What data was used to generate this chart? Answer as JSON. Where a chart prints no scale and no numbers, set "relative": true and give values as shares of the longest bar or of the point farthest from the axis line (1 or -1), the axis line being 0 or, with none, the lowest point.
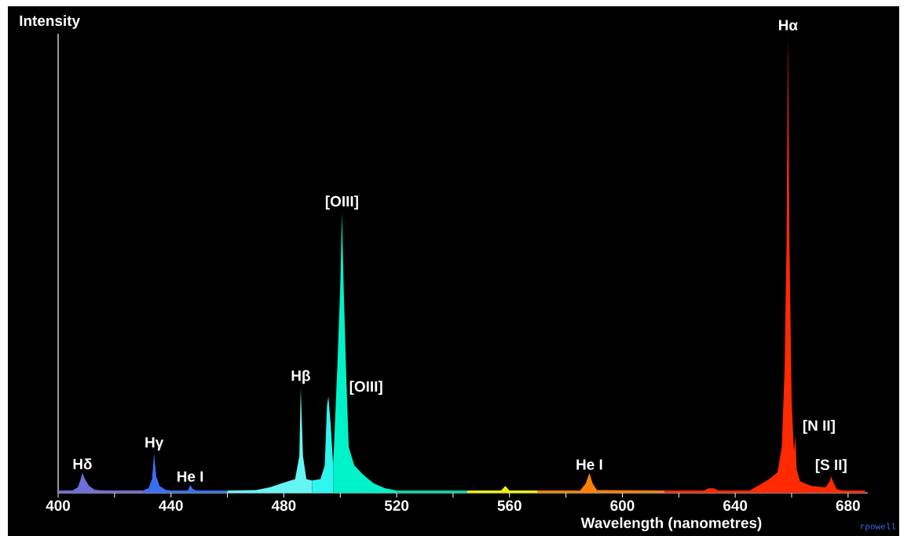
{
  "chart_data": {
    "type": "area",
    "relative": true,
    "xlabel": "Wavelength  (nanometres)",
    "ylabel": "Intensity",
    "xlim": [
      400,
      687
    ],
    "xticks": [
      400,
      {
        "value": 420,
        "label": null
      },
      440,
      {
        "value": 460,
        "label": null
      },
      480,
      {
        "value": 500,
        "label": null
      },
      520,
      {
        "value": 540,
        "label": null
      },
      560,
      {
        "value": 580,
        "label": null
      },
      600,
      {
        "value": 620,
        "label": null
      },
      640,
      {
        "value": 660,
        "label": null
      },
      680
    ],
    "series": [
      {
        "color": "#6f6fd8",
        "x": [
          400,
          405,
          407,
          408,
          408.6,
          409.5,
          411,
          413,
          416,
          430
        ],
        "values": [
          0.005,
          0.005,
          0.012,
          0.03,
          0.044,
          0.03,
          0.015,
          0.007,
          0.005,
          0.005
        ]
      },
      {
        "color": "#3d6ef2",
        "x": [
          430,
          432,
          433.3,
          434,
          434.8,
          436,
          438,
          440,
          446,
          446.8,
          447.8,
          449,
          460
        ],
        "values": [
          0.005,
          0.01,
          0.03,
          0.085,
          0.035,
          0.015,
          0.007,
          0.005,
          0.005,
          0.017,
          0.008,
          0.005,
          0.005
        ]
      },
      {
        "color": "#66f5f5",
        "x": [
          460,
          470,
          475,
          480,
          484,
          485.5,
          486,
          486.8,
          488,
          490
        ],
        "values": [
          0.005,
          0.006,
          0.012,
          0.022,
          0.03,
          0.08,
          0.23,
          0.08,
          0.03,
          0.027
        ]
      },
      {
        "color": "#2ef5f0",
        "x": [
          490,
          493,
          494.5,
          495.3,
          495.8,
          496.6,
          497.5
        ],
        "values": [
          0.027,
          0.03,
          0.06,
          0.19,
          0.21,
          0.15,
          0.06
        ]
      },
      {
        "color": "#00f2c8",
        "x": [
          497.5,
          499,
          500,
          500.6,
          501.2,
          502,
          503,
          505,
          508,
          512,
          516,
          520
        ],
        "values": [
          0.06,
          0.28,
          0.45,
          0.61,
          0.45,
          0.28,
          0.1,
          0.06,
          0.04,
          0.02,
          0.01,
          0.005
        ]
      },
      {
        "color": "#00d8a8",
        "x": [
          520,
          545
        ],
        "values": [
          0.005,
          0.005
        ]
      },
      {
        "color": "#f0f000",
        "x": [
          545,
          557,
          558.5,
          560,
          570
        ],
        "values": [
          0.005,
          0.005,
          0.015,
          0.005,
          0.005
        ]
      },
      {
        "color": "#ff8000",
        "x": [
          570,
          585,
          587,
          588.3,
          589.5,
          591,
          615
        ],
        "values": [
          0.005,
          0.005,
          0.02,
          0.043,
          0.02,
          0.006,
          0.005
        ]
      },
      {
        "color": "#ff2a00",
        "x": [
          615,
          629,
          630.5,
          632.5,
          634,
          645,
          648,
          652,
          655,
          656.5,
          657.5,
          658.2,
          658.7,
          659.2,
          660,
          660.8,
          661.3,
          661.8,
          663,
          667,
          672,
          673.5,
          674,
          675,
          676,
          678,
          686
        ],
        "values": [
          0.005,
          0.005,
          0.01,
          0.01,
          0.005,
          0.005,
          0.015,
          0.03,
          0.045,
          0.1,
          0.27,
          0.55,
          1.0,
          0.55,
          0.2,
          0.09,
          0.125,
          0.05,
          0.025,
          0.015,
          0.012,
          0.025,
          0.036,
          0.02,
          0.008,
          0.005,
          0.005
        ]
      }
    ],
    "annotations": [
      {
        "text": "Hδ",
        "x": 408.6,
        "y": 0.044
      },
      {
        "text": "Hγ",
        "x": 434,
        "y": 0.085
      },
      {
        "text": "He I",
        "x": 446.8,
        "y": 0.017
      },
      {
        "text": "Hβ",
        "x": 486,
        "y": 0.23
      },
      {
        "text": "[OIII]",
        "x": 495.8,
        "y": 0.21
      },
      {
        "text": "[OIII]",
        "x": 500.6,
        "y": 0.61
      },
      {
        "text": "He I",
        "x": 588.3,
        "y": 0.043
      },
      {
        "text": "Hα",
        "x": 658.7,
        "y": 1.0
      },
      {
        "text": "[N II]",
        "x": 661.3,
        "y": 0.125
      },
      {
        "text": "[S II]",
        "x": 674,
        "y": 0.036
      },
      "rpowell"
    ]
  }
}
